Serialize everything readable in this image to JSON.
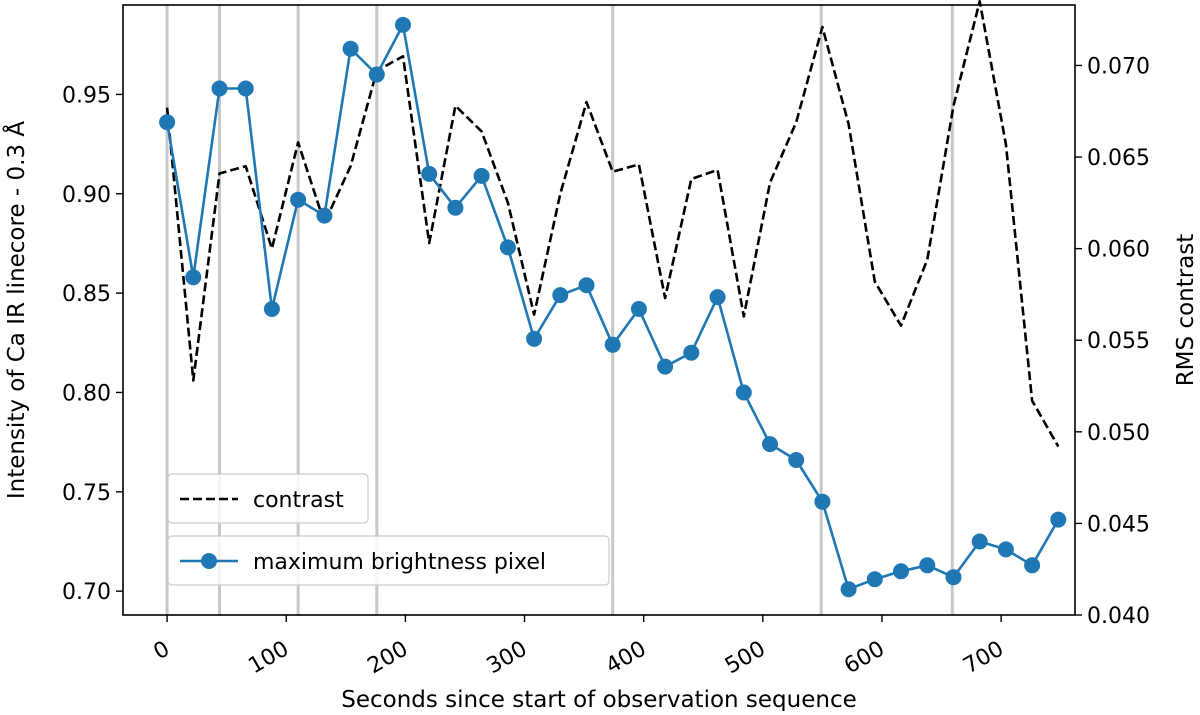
{
  "chart_data": {
    "type": "line",
    "title": "",
    "xlabel": "Seconds since start of observation sequence",
    "ylabel_left": "Intensity of Ca IR linecore - 0.3 Å",
    "ylabel_right": "RMS contrast",
    "xlim": [
      -37,
      762
    ],
    "ylim_left": [
      0.688,
      0.995
    ],
    "ylim_right": [
      0.04,
      0.0733
    ],
    "x_ticks": [
      "0",
      "100",
      "200",
      "300",
      "400",
      "500",
      "600",
      "700"
    ],
    "y_left_ticks": [
      "0.70",
      "0.75",
      "0.80",
      "0.85",
      "0.90",
      "0.95"
    ],
    "y_right_ticks": [
      "0.040",
      "0.045",
      "0.050",
      "0.055",
      "0.060",
      "0.065",
      "0.070"
    ],
    "vertical_lines_x": [
      0,
      44,
      110,
      176,
      374,
      549,
      659
    ],
    "vertical_line_color": "#c8c8c8",
    "legend": {
      "position": "lower-left",
      "entries": [
        {
          "label": "contrast",
          "style": "dashed",
          "color": "#000000"
        },
        {
          "label": "maximum brightness pixel",
          "style": "line-marker",
          "color": "#1f77b4"
        }
      ]
    },
    "series": [
      {
        "name": "maximum brightness pixel",
        "axis": "left",
        "color": "#1f77b4",
        "x": [
          0,
          22,
          44,
          66,
          88,
          110,
          132,
          154,
          176,
          198,
          220,
          242,
          264,
          286,
          308,
          330,
          352,
          374,
          396,
          418,
          440,
          462,
          484,
          506,
          528,
          550,
          572,
          594,
          616,
          638,
          660,
          682,
          704,
          726,
          748
        ],
        "values": [
          0.936,
          0.858,
          0.953,
          0.953,
          0.842,
          0.897,
          0.889,
          0.973,
          0.96,
          0.985,
          0.91,
          0.893,
          0.909,
          0.873,
          0.827,
          0.849,
          0.854,
          0.824,
          0.842,
          0.813,
          0.82,
          0.848,
          0.8,
          0.774,
          0.766,
          0.745,
          0.701,
          0.706,
          0.71,
          0.713,
          0.707,
          0.725,
          0.721,
          0.713,
          0.736
        ]
      },
      {
        "name": "contrast",
        "axis": "right",
        "color": "#000000",
        "x": [
          0,
          22,
          44,
          66,
          88,
          110,
          132,
          154,
          176,
          198,
          220,
          242,
          264,
          286,
          308,
          330,
          352,
          374,
          396,
          418,
          440,
          462,
          484,
          506,
          528,
          550,
          572,
          594,
          616,
          638,
          660,
          682,
          704,
          726,
          748
        ],
        "values": [
          0.0677,
          0.0528,
          0.0641,
          0.0645,
          0.06,
          0.0658,
          0.0614,
          0.0645,
          0.0697,
          0.0705,
          0.0603,
          0.0678,
          0.0664,
          0.0625,
          0.0564,
          0.063,
          0.068,
          0.0642,
          0.0646,
          0.0573,
          0.0638,
          0.0643,
          0.0563,
          0.0636,
          0.0669,
          0.0721,
          0.0668,
          0.0582,
          0.0558,
          0.0594,
          0.0678,
          0.0735,
          0.0657,
          0.0517,
          0.0492
        ]
      }
    ]
  }
}
